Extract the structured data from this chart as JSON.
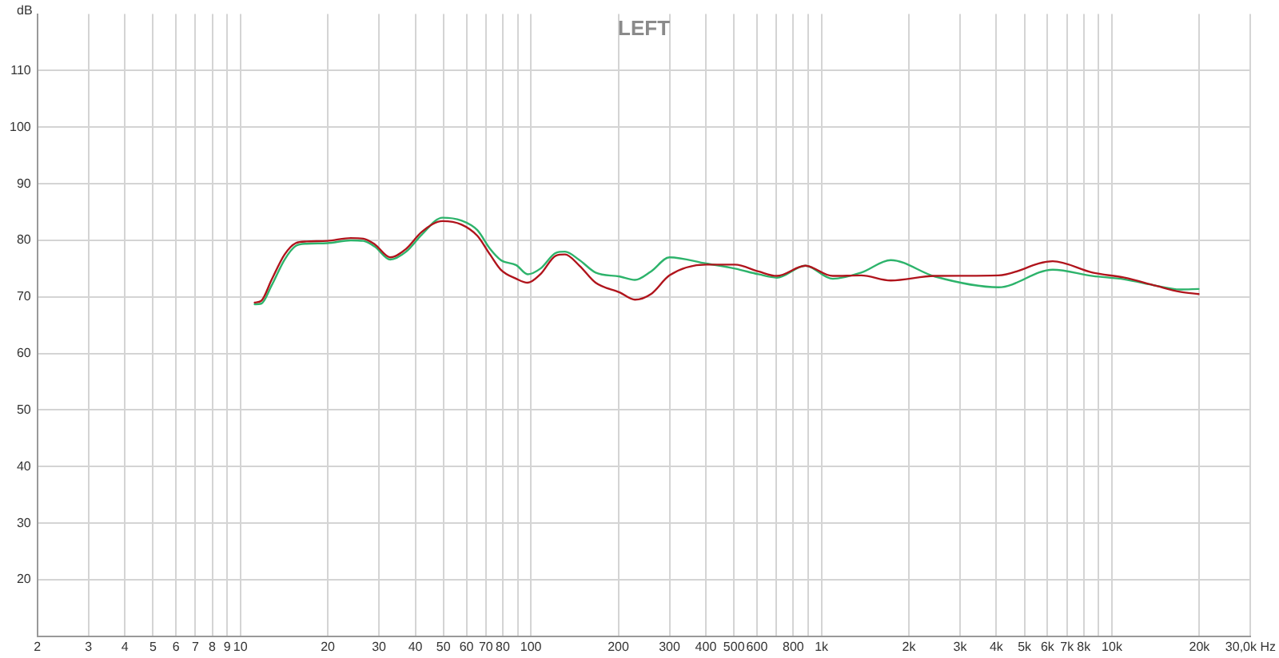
{
  "chart_data": {
    "type": "line",
    "title": "LEFT",
    "ylabel": "dB",
    "log": "x",
    "grid": true,
    "legend": false,
    "marker": "none",
    "line_style": "solid",
    "xlim": [
      2,
      30000
    ],
    "ylim": [
      10,
      120
    ],
    "xticks": [
      2,
      3,
      4,
      5,
      6,
      7,
      8,
      9,
      10,
      20,
      30,
      40,
      50,
      60,
      70,
      80,
      {
        "value": 90,
        "label": null
      },
      100,
      200,
      300,
      400,
      500,
      600,
      {
        "value": 700,
        "label": null
      },
      800,
      {
        "value": 900,
        "label": null
      },
      {
        "value": 1000,
        "label": "1k"
      },
      {
        "value": 2000,
        "label": "2k"
      },
      {
        "value": 3000,
        "label": "3k"
      },
      {
        "value": 4000,
        "label": "4k"
      },
      {
        "value": 5000,
        "label": "5k"
      },
      {
        "value": 6000,
        "label": "6k"
      },
      {
        "value": 7000,
        "label": "7k"
      },
      {
        "value": 8000,
        "label": "8k"
      },
      {
        "value": 9000,
        "label": null
      },
      {
        "value": 10000,
        "label": "10k"
      },
      {
        "value": 20000,
        "label": "20k"
      },
      {
        "value": 30000,
        "label": "30,0k Hz"
      }
    ],
    "yticks": [
      20,
      30,
      40,
      50,
      60,
      70,
      80,
      90,
      100,
      110
    ],
    "x": [
      11.2,
      11.8,
      12.8,
      14.2,
      15.5,
      16.9,
      19.9,
      24,
      26.5,
      29,
      32.8,
      37.2,
      42.1,
      49.6,
      57.6,
      65.4,
      72.3,
      78.8,
      89.1,
      97.5,
      107.8,
      122,
      131,
      147,
      167,
      202,
      228,
      259,
      300,
      401,
      504,
      607,
      702,
      880,
      1094,
      1370,
      1732,
      2455,
      4067,
      6253,
      8577,
      11040,
      14100,
      17140,
      19870
    ],
    "series": [
      {
        "color": "#b0141c",
        "values": [
          69.0,
          69.3,
          73,
          77.5,
          79.5,
          79.8,
          79.9,
          80.4,
          80.3,
          79.3,
          77.0,
          78.5,
          81.5,
          83.4,
          82.8,
          80.8,
          77.5,
          74.8,
          73.2,
          72.5,
          74,
          77.3,
          77.5,
          75.5,
          72.5,
          70.8,
          69.5,
          70.5,
          73.8,
          75.7,
          75.7,
          74.5,
          73.7,
          75.5,
          73.7,
          73.8,
          72.9,
          73.7,
          73.8,
          76.3,
          74.3,
          73.4,
          72.0,
          70.9,
          70.5
        ]
      },
      {
        "color": "#2db36b",
        "values": [
          68.7,
          68.8,
          72.0,
          76.6,
          79.0,
          79.4,
          79.5,
          80.0,
          79.9,
          78.9,
          76.6,
          78.0,
          81.0,
          84.0,
          83.5,
          81.8,
          78.5,
          76.5,
          75.6,
          74.0,
          75,
          77.8,
          78.0,
          76.5,
          74.3,
          73.6,
          73.0,
          74.5,
          77.0,
          75.9,
          75.0,
          74.0,
          73.4,
          75.5,
          73.2,
          74.3,
          76.5,
          73.6,
          71.7,
          74.8,
          73.7,
          73.1,
          72.0,
          71.3,
          71.4
        ]
      }
    ]
  }
}
